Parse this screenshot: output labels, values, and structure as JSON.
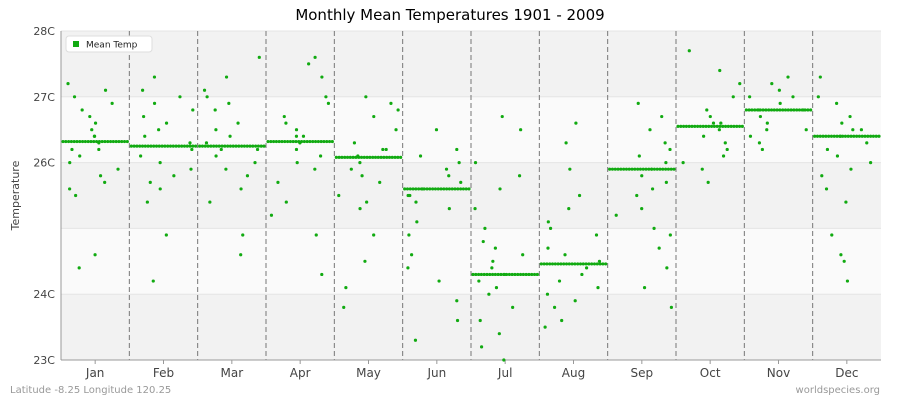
{
  "chart_data": {
    "type": "scatter",
    "title": "Monthly Mean Temperatures 1901 - 2009",
    "ylabel": "Temperature",
    "xlabel": "",
    "ylim": [
      23,
      28
    ],
    "yticks": [
      "23C",
      "24C",
      "26C",
      "27C",
      "28C"
    ],
    "yticks_values": [
      23,
      24,
      26,
      27,
      28
    ],
    "categories": [
      "Jan",
      "Feb",
      "Mar",
      "Apr",
      "May",
      "Jun",
      "Jul",
      "Aug",
      "Sep",
      "Oct",
      "Nov",
      "Dec"
    ],
    "grid": true,
    "legend": {
      "position": "top-left",
      "label": "Mean Temp",
      "color": "#11aa11"
    },
    "series": [
      {
        "name": "Mean Temp",
        "color": "#11aa11",
        "months": [
          {
            "mode": 26.32,
            "values": [
              26.4,
              26.3,
              26.2,
              26.1,
              26.5,
              26.6,
              26.0,
              25.9,
              25.8,
              26.7,
              26.8,
              26.9,
              25.7,
              25.6,
              24.6,
              24.4,
              27.1,
              27.0,
              26.2,
              26.4,
              25.5,
              27.2
            ]
          },
          {
            "mode": 26.25,
            "values": [
              26.3,
              26.2,
              26.1,
              26.0,
              25.9,
              26.4,
              26.5,
              26.6,
              25.8,
              25.7,
              26.7,
              26.8,
              25.6,
              25.4,
              24.9,
              24.2,
              27.1,
              27.0,
              26.9,
              27.3
            ]
          },
          {
            "mode": 26.25,
            "values": [
              26.3,
              26.2,
              26.1,
              26.0,
              26.4,
              26.5,
              26.6,
              25.9,
              25.8,
              25.6,
              25.4,
              26.8,
              26.9,
              27.0,
              27.1,
              27.3,
              24.9,
              24.6,
              27.6,
              26.2
            ]
          },
          {
            "mode": 26.32,
            "values": [
              26.4,
              26.3,
              26.2,
              26.1,
              26.0,
              26.5,
              26.6,
              26.7,
              25.9,
              25.7,
              25.4,
              24.9,
              24.3,
              26.9,
              27.0,
              27.3,
              27.6,
              27.5,
              26.4,
              25.2
            ]
          },
          {
            "mode": 26.08,
            "values": [
              26.1,
              26.0,
              25.9,
              25.8,
              25.7,
              26.2,
              26.3,
              26.5,
              25.5,
              25.3,
              24.9,
              24.5,
              23.8,
              26.8,
              27.0,
              26.9,
              26.7,
              25.4,
              24.1,
              26.2
            ]
          },
          {
            "mode": 25.6,
            "values": [
              25.7,
              25.6,
              25.5,
              25.4,
              25.3,
              25.8,
              25.9,
              26.0,
              26.1,
              26.2,
              25.1,
              24.9,
              24.6,
              24.4,
              24.2,
              23.9,
              23.6,
              23.3,
              26.5,
              25.5
            ]
          },
          {
            "mode": 24.3,
            "values": [
              24.4,
              24.3,
              24.2,
              24.1,
              24.0,
              24.5,
              24.6,
              24.8,
              25.0,
              25.3,
              23.8,
              23.6,
              23.4,
              23.2,
              23.0,
              25.6,
              26.0,
              26.5,
              26.7,
              25.8,
              24.7
            ]
          },
          {
            "mode": 24.46,
            "values": [
              24.5,
              24.4,
              24.3,
              24.2,
              24.6,
              24.7,
              24.9,
              25.1,
              24.0,
              23.8,
              23.6,
              23.5,
              25.5,
              25.9,
              26.3,
              26.6,
              24.1,
              23.9,
              25.3,
              25.0
            ]
          },
          {
            "mode": 25.9,
            "values": [
              26.0,
              25.9,
              25.8,
              25.7,
              25.6,
              26.1,
              26.2,
              26.3,
              25.5,
              25.3,
              25.0,
              24.7,
              24.4,
              24.1,
              23.8,
              26.5,
              26.7,
              26.9,
              25.2,
              24.9
            ]
          },
          {
            "mode": 26.55,
            "values": [
              26.6,
              26.5,
              26.4,
              26.3,
              26.2,
              26.7,
              26.8,
              27.0,
              26.1,
              26.0,
              25.9,
              25.7,
              27.2,
              27.4,
              27.7,
              26.6
            ]
          },
          {
            "mode": 26.8,
            "values": [
              26.8,
              26.7,
              26.9,
              26.6,
              27.0,
              26.5,
              27.1,
              26.4,
              27.2,
              26.3,
              27.3,
              26.2,
              27.0,
              26.5,
              26.8
            ]
          },
          {
            "mode": 26.4,
            "values": [
              26.5,
              26.4,
              26.3,
              26.2,
              26.1,
              26.6,
              26.0,
              25.9,
              25.8,
              25.6,
              25.4,
              24.9,
              24.6,
              24.2,
              26.9,
              27.0,
              27.3,
              26.5,
              24.5,
              26.7
            ]
          }
        ]
      }
    ]
  },
  "footer": {
    "location": "Latitude -8.25 Longitude 120.25",
    "site": "worldspecies.org"
  }
}
